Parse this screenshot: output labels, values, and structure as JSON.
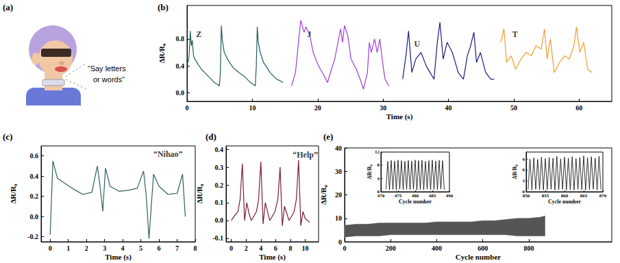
{
  "illustration": {
    "panel": "(a)",
    "speech": [
      "“Say letters",
      "or words”"
    ]
  },
  "chart_data": [
    {
      "panel": "(b)",
      "type": "line",
      "xlabel": "Time (s)",
      "ylabel": "ΔR/R₀",
      "xlim": [
        0,
        65
      ],
      "xticks": [
        0,
        10,
        20,
        30,
        40,
        50,
        60
      ],
      "ylim": [
        -0.13,
        1.3
      ],
      "yticks": [
        {
          "value": 0,
          "label": "0.0"
        },
        0.4,
        0.8
      ],
      "series": [
        {
          "color": "#1e5e5b",
          "x": [
            0.2,
            0.35,
            0.5,
            0.65,
            0.8,
            1.0,
            1.2,
            1.7,
            2.2,
            2.7,
            3.2,
            3.7,
            4.2,
            4.7,
            4.95,
            5.1,
            5.25,
            5.4,
            5.7,
            6.2,
            6.7,
            7.2,
            7.7,
            8.2,
            8.7,
            9.2,
            9.7,
            10.2,
            10.45,
            10.6,
            10.75,
            10.9,
            11.2,
            11.7,
            12.2,
            12.7,
            13.2,
            13.7,
            14.2,
            14.7
          ],
          "values": [
            0.45,
            0.6,
            0.92,
            0.7,
            0.78,
            0.55,
            0.5,
            0.42,
            0.35,
            0.3,
            0.25,
            0.2,
            0.15,
            0.12,
            0.1,
            0.3,
            1.0,
            0.78,
            0.6,
            0.5,
            0.42,
            0.36,
            0.32,
            0.28,
            0.25,
            0.2,
            0.15,
            0.12,
            0.1,
            0.4,
            0.98,
            0.75,
            0.6,
            0.45,
            0.38,
            0.3,
            0.25,
            0.2,
            0.18,
            0.15
          ]
        },
        {
          "color": "#9b3ddb",
          "x": [
            16,
            16.6,
            17.1,
            17.4,
            17.9,
            18.2,
            18.8,
            19.3,
            19.9,
            20.4,
            21,
            21.5,
            22.1,
            22.6,
            23.2,
            23.5,
            23.8,
            24.1,
            24.6,
            25.1,
            25.9,
            26.5,
            27,
            27.6,
            27.9,
            28.2,
            28.7,
            29.1,
            29.5,
            30,
            30.3,
            30.9
          ],
          "values": [
            0.1,
            0.3,
            0.8,
            1.08,
            0.9,
            0.98,
            0.85,
            0.6,
            0.45,
            0.35,
            0.25,
            0.15,
            0.35,
            0.5,
            0.8,
            0.95,
            0.75,
            1.0,
            0.85,
            0.5,
            0.35,
            0.2,
            0.05,
            0.3,
            0.75,
            0.6,
            0.8,
            0.6,
            0.8,
            0.4,
            0.2,
            0.1
          ]
        },
        {
          "color": "#1a1a80",
          "x": [
            33,
            33.5,
            33.9,
            34.4,
            35,
            35.8,
            36.6,
            37.2,
            37.8,
            38.3,
            38.7,
            39.2,
            39.8,
            40.6,
            41.5,
            42.3,
            42.9,
            43.4,
            43.9,
            44.3,
            44.9,
            45.7,
            46.5,
            47
          ],
          "values": [
            0.2,
            0.55,
            0.92,
            0.3,
            0.5,
            0.6,
            0.4,
            0.3,
            0.2,
            0.75,
            1.05,
            0.5,
            0.75,
            0.6,
            0.3,
            0.2,
            0.55,
            0.7,
            0.9,
            0.45,
            0.6,
            0.3,
            0.2,
            0.2
          ]
        },
        {
          "color": "#f39c29",
          "x": [
            48,
            48.5,
            48.9,
            49.6,
            50.3,
            51.1,
            51.9,
            52.7,
            53.4,
            54.2,
            54.7,
            55.1,
            55.6,
            56.2,
            57,
            57.8,
            58.5,
            59.2,
            59.6,
            60.1,
            60.7,
            61.3,
            62
          ],
          "values": [
            0.75,
            0.95,
            0.45,
            0.55,
            0.35,
            0.5,
            0.6,
            0.55,
            0.7,
            0.65,
            0.95,
            0.5,
            0.8,
            0.3,
            0.45,
            0.55,
            0.5,
            0.7,
            0.98,
            0.6,
            0.75,
            0.35,
            0.3
          ]
        }
      ],
      "annotations": [
        {
          "text": "Z",
          "x": 1.8,
          "y": 0.87
        },
        {
          "text": "J",
          "x": 18.7,
          "y": 0.87
        },
        {
          "text": "U",
          "x": 35.2,
          "y": 0.73
        },
        {
          "text": "T",
          "x": 50.2,
          "y": 0.87
        }
      ]
    },
    {
      "panel": "(c)",
      "type": "line",
      "xlabel": "Time (s)",
      "ylabel": "ΔR/R₀",
      "xlim": [
        -0.5,
        8
      ],
      "xticks": [
        0,
        1,
        2,
        3,
        4,
        5,
        6,
        7,
        8
      ],
      "ylim": [
        -0.25,
        0.7
      ],
      "yticks": [
        -0.2,
        {
          "value": 0,
          "label": "0.0"
        },
        0.2,
        0.4,
        0.6
      ],
      "series": [
        {
          "color": "#2e5f5c",
          "x": [
            0,
            0.15,
            0.4,
            0.8,
            1.3,
            1.8,
            2.3,
            2.6,
            2.75,
            2.9,
            3.05,
            3.3,
            3.8,
            4.3,
            4.8,
            5.15,
            5.3,
            5.45,
            5.7,
            6,
            6.5,
            7,
            7.3,
            7.45
          ],
          "values": [
            -0.18,
            0.55,
            0.38,
            0.33,
            0.27,
            0.22,
            0.24,
            0.5,
            0.3,
            0.05,
            0.48,
            0.3,
            0.25,
            0.26,
            0.28,
            0.45,
            0.2,
            -0.22,
            0.42,
            0.3,
            0.22,
            0.23,
            0.42,
            0.0
          ]
        }
      ],
      "annotations": [
        {
          "text": "“Nihao”",
          "x": 6.5,
          "y": 0.62
        }
      ]
    },
    {
      "panel": "(d)",
      "type": "line",
      "xlabel": "Time (s)",
      "ylabel": "ΔR/R₀",
      "xlim": [
        -0.7,
        11.8
      ],
      "xticks": [
        0,
        2,
        4,
        6,
        8,
        10
      ],
      "ylim": [
        -0.12,
        0.42
      ],
      "yticks": [
        -0.1,
        {
          "value": 0,
          "label": "0.0"
        },
        0.1,
        0.2,
        0.3,
        0.4
      ],
      "series": [
        {
          "color": "#7b1c3a",
          "x": [
            0,
            0.5,
            0.9,
            1.2,
            1.5,
            1.8,
            2.1,
            2.4,
            2.7,
            3.0,
            3.4,
            3.7,
            4.0,
            4.3,
            4.6,
            4.9,
            5.2,
            5.5,
            5.9,
            6.3,
            6.6,
            6.9,
            7.2,
            7.5,
            7.8,
            8.1,
            8.5,
            8.8,
            9.1,
            9.4,
            9.7,
            10,
            10.3,
            10.6
          ],
          "values": [
            0.0,
            0.03,
            0.05,
            0.12,
            0.32,
            0.0,
            0.1,
            0.04,
            0.0,
            0.02,
            0.05,
            0.12,
            0.33,
            -0.02,
            0.1,
            0.05,
            0.0,
            0.02,
            0.05,
            0.12,
            0.3,
            -0.03,
            0.08,
            0.04,
            0.0,
            0.02,
            0.05,
            0.12,
            0.34,
            -0.03,
            0.05,
            0.01,
            0.0,
            -0.01
          ]
        }
      ],
      "annotations": [
        {
          "text": "“Help”",
          "x": 10,
          "y": 0.37
        }
      ]
    },
    {
      "panel": "(e)",
      "type": "area",
      "xlabel": "Cycle number",
      "ylabel": "ΔR/R₀",
      "xlim": [
        0,
        1160
      ],
      "xticks": [
        0,
        200,
        400,
        600,
        800
      ],
      "ylim": [
        0,
        40
      ],
      "yticks": [
        0,
        10,
        20,
        30,
        40
      ],
      "series": [
        {
          "color": "#555555",
          "x": [
            0,
            50,
            100,
            150,
            200,
            250,
            300,
            350,
            400,
            450,
            500,
            550,
            600,
            650,
            700,
            750,
            800,
            850,
            870
          ],
          "lower": [
            2,
            2.5,
            2.5,
            2.5,
            3,
            3,
            3,
            3,
            3,
            3,
            3,
            3,
            3,
            3,
            3,
            2.5,
            2.5,
            2.5,
            2.5
          ],
          "upper": [
            7,
            7.5,
            7.5,
            8,
            8,
            8,
            8,
            8,
            8.5,
            8.5,
            8.5,
            8.5,
            9,
            9,
            9.5,
            10,
            10,
            10.5,
            11
          ]
        }
      ],
      "insets": [
        {
          "type": "line",
          "xlabel": "Cycle number",
          "ylabel": "ΔR/R₀",
          "xlim": [
            470,
            490
          ],
          "xticks": [
            470,
            475,
            480,
            485,
            490
          ],
          "ylim": [
            0,
            12
          ],
          "yticks": [
            0,
            4,
            8,
            12
          ],
          "series": [
            {
              "color": "#000000",
              "x": [
                471.5,
                472,
                472.5,
                473,
                473.5,
                474,
                474.5,
                475,
                475.5,
                476,
                476.5,
                477,
                477.5,
                478,
                478.5,
                479,
                479.5,
                480,
                480.5,
                481,
                481.5,
                482,
                482.5,
                483,
                483.5,
                484,
                484.5,
                485,
                485.5,
                486,
                486.5,
                487,
                487.5,
                488,
                488.5
              ],
              "values": [
                0.8,
                9.2,
                0.6,
                9.5,
                0.7,
                9.3,
                0.5,
                9.6,
                0.8,
                9.4,
                0.6,
                9.2,
                0.7,
                9.5,
                0.6,
                9.3,
                0.8,
                9.6,
                0.5,
                9.4,
                0.7,
                9.5,
                0.6,
                9.2,
                0.8,
                9.4,
                0.6,
                9.6,
                0.7,
                9.3,
                0.6,
                9.5,
                0.8,
                9.4,
                0.6
              ]
            }
          ]
        },
        {
          "type": "line",
          "xlabel": "Cycle number",
          "ylabel": "ΔR/R₀",
          "xlim": [
            850,
            870
          ],
          "xticks": [
            850,
            855,
            860,
            865,
            870
          ],
          "ylim": [
            0,
            11
          ],
          "yticks": [
            0,
            3,
            6,
            9
          ],
          "series": [
            {
              "color": "#000000",
              "x": [
                850.5,
                851,
                851.5,
                852,
                852.5,
                853,
                853.5,
                854,
                854.5,
                855,
                855.5,
                856,
                856.5,
                857,
                857.5,
                858,
                858.5,
                859,
                859.5,
                860,
                860.5,
                861,
                861.5,
                862,
                862.5,
                863,
                863.5,
                864,
                864.5,
                865,
                865.5,
                866,
                866.5,
                867,
                867.5,
                868,
                868.5,
                869,
                869.5
              ],
              "values": [
                0.6,
                9.1,
                0.5,
                9.4,
                0.7,
                9.0,
                0.6,
                9.6,
                0.5,
                9.2,
                0.6,
                9.5,
                0.7,
                9.3,
                0.5,
                9.8,
                0.6,
                9.1,
                0.7,
                9.6,
                0.5,
                9.3,
                0.6,
                9.7,
                0.5,
                9.2,
                0.7,
                9.5,
                0.6,
                9.9,
                0.5,
                9.4,
                0.6,
                9.7,
                0.7,
                9.3,
                0.5,
                9.8,
                0.6
              ]
            }
          ]
        }
      ]
    }
  ]
}
